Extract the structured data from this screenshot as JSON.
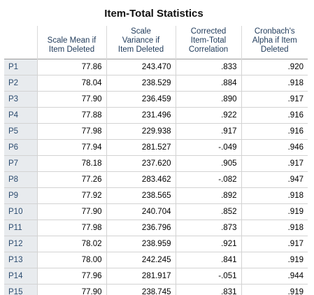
{
  "title": "Item-Total Statistics",
  "columns": [
    "Scale Mean if Item Deleted",
    "Scale Variance if Item Deleted",
    "Corrected Item-Total Correlation",
    "Cronbach's Alpha if Item Deleted"
  ],
  "column_lines": [
    [
      "Scale Mean if",
      "Item Deleted"
    ],
    [
      "Scale",
      "Variance if",
      "Item Deleted"
    ],
    [
      "Corrected",
      "Item-Total",
      "Correlation"
    ],
    [
      "Cronbach's",
      "Alpha if Item",
      "Deleted"
    ]
  ],
  "rows": [
    {
      "label": "P1",
      "values": [
        "77.86",
        "243.470",
        ".833",
        ".920"
      ]
    },
    {
      "label": "P2",
      "values": [
        "78.04",
        "238.529",
        ".884",
        ".918"
      ]
    },
    {
      "label": "P3",
      "values": [
        "77.90",
        "236.459",
        ".890",
        ".917"
      ]
    },
    {
      "label": "P4",
      "values": [
        "77.88",
        "231.496",
        ".922",
        ".916"
      ]
    },
    {
      "label": "P5",
      "values": [
        "77.98",
        "229.938",
        ".917",
        ".916"
      ]
    },
    {
      "label": "P6",
      "values": [
        "77.94",
        "281.527",
        "-.049",
        ".946"
      ]
    },
    {
      "label": "P7",
      "values": [
        "78.18",
        "237.620",
        ".905",
        ".917"
      ]
    },
    {
      "label": "P8",
      "values": [
        "77.26",
        "283.462",
        "-.082",
        ".947"
      ]
    },
    {
      "label": "P9",
      "values": [
        "77.92",
        "238.565",
        ".892",
        ".918"
      ]
    },
    {
      "label": "P10",
      "values": [
        "77.90",
        "240.704",
        ".852",
        ".919"
      ]
    },
    {
      "label": "P11",
      "values": [
        "77.98",
        "236.796",
        ".873",
        ".918"
      ]
    },
    {
      "label": "P12",
      "values": [
        "78.02",
        "238.959",
        ".921",
        ".917"
      ]
    },
    {
      "label": "P13",
      "values": [
        "78.00",
        "242.245",
        ".841",
        ".919"
      ]
    },
    {
      "label": "P14",
      "values": [
        "77.96",
        "281.917",
        "-.051",
        ".944"
      ]
    },
    {
      "label": "P15",
      "values": [
        "77.90",
        "238.745",
        ".831",
        ".919"
      ]
    }
  ]
}
